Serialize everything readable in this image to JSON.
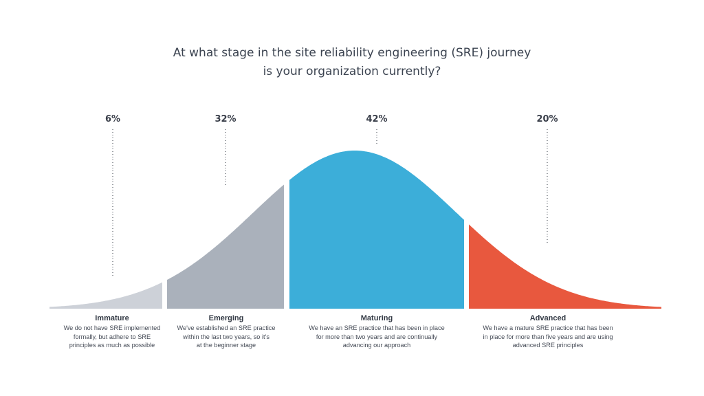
{
  "title": {
    "line1": "At what stage in the site reliability engineering (SRE) journey",
    "line2": "is your organization currently?"
  },
  "chart_data": {
    "type": "area",
    "series": [
      {
        "name": "Immature",
        "value": 6,
        "label": "6%",
        "color": "#cdd1d8",
        "description": [
          "We do not have SRE implemented",
          "formally, but adhere to SRE",
          "principles as much as possible"
        ]
      },
      {
        "name": "Emerging",
        "value": 32,
        "label": "32%",
        "color": "#aab1bb",
        "description": [
          "We've established an SRE practice",
          "within the last two years, so it's",
          "at the beginner stage"
        ]
      },
      {
        "name": "Maturing",
        "value": 42,
        "label": "42%",
        "color": "#3caed9",
        "description": [
          "We have an SRE practice that has been in place",
          "for more than two years and are continually",
          "advancing our approach"
        ]
      },
      {
        "name": "Advanced",
        "value": 20,
        "label": "20%",
        "color": "#e8583e",
        "description": [
          "We have a mature SRE practice that has been",
          "in place for more than five years and are using",
          "advanced SRE principles"
        ]
      }
    ]
  }
}
